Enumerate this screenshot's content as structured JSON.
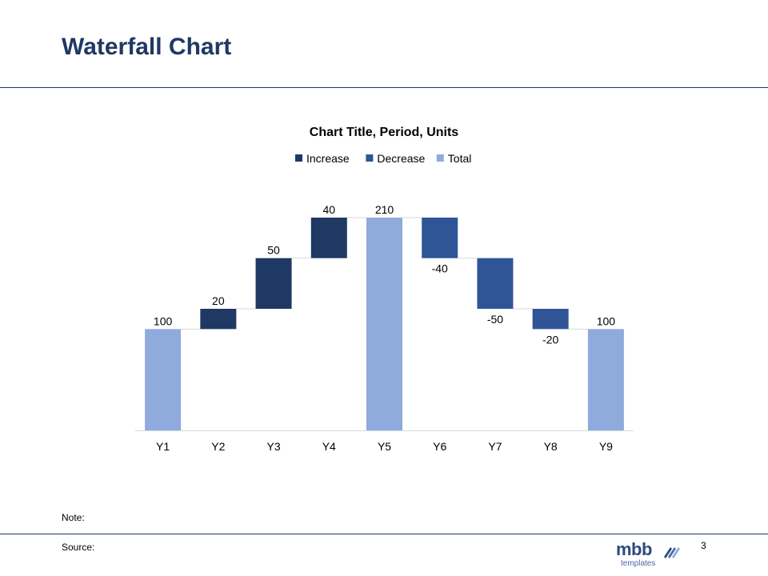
{
  "slide": {
    "title": "Waterfall Chart",
    "note_label": "Note:",
    "source_label": "Source:",
    "page_number": "3",
    "logo_text": "mbb",
    "logo_subtext": "templates"
  },
  "colors": {
    "increase": "#1f3864",
    "decrease": "#2f5597",
    "total": "#8faadc",
    "title": "#1f3864",
    "connector": "#d9d9d9"
  },
  "chart_data": {
    "type": "bar",
    "subtype": "waterfall",
    "title": "Chart Title, Period, Units",
    "legend": {
      "placement": "top",
      "entries": [
        {
          "name": "Increase",
          "color": "#1f3864"
        },
        {
          "name": "Decrease",
          "color": "#2f5597"
        },
        {
          "name": "Total",
          "color": "#8faadc"
        }
      ]
    },
    "categories": [
      "Y1",
      "Y2",
      "Y3",
      "Y4",
      "Y5",
      "Y6",
      "Y7",
      "Y8",
      "Y9"
    ],
    "values": [
      100,
      20,
      50,
      40,
      210,
      -40,
      -50,
      -20,
      100
    ],
    "kinds": [
      "Total",
      "Increase",
      "Increase",
      "Increase",
      "Total",
      "Decrease",
      "Decrease",
      "Decrease",
      "Total"
    ],
    "data_labels": [
      "100",
      "20",
      "50",
      "40",
      "210",
      "-40",
      "-50",
      "-20",
      "100"
    ],
    "ylim": [
      0,
      210
    ],
    "grid": false,
    "xlabel": "",
    "ylabel": ""
  }
}
